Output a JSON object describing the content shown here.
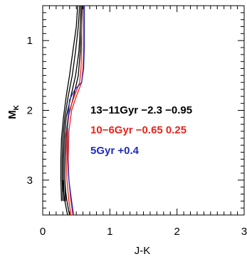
{
  "chart_data": {
    "type": "line",
    "xlabel": "J-K",
    "ylabel": "M",
    "ylabel_sub": "K",
    "xlim": [
      0,
      3
    ],
    "ylim": [
      3.5,
      0.5
    ],
    "y_inverted": true,
    "x_ticks": [
      0,
      1,
      2,
      3
    ],
    "x_tick_labels": [
      "0",
      "1",
      "2",
      "3"
    ],
    "y_ticks": [
      1,
      2,
      3
    ],
    "y_tick_labels": [
      "1",
      "2",
      "3"
    ],
    "legend": [
      {
        "label": "13−11Gyr  −2.3  −0.95",
        "color": "#000000"
      },
      {
        "label": "10−6Gyr  −0.65  0.25",
        "color": "#e8231c"
      },
      {
        "label": "5Gyr  +0.4",
        "color": "#1f2bc0"
      }
    ],
    "series": [
      {
        "color": "#000000",
        "x": [
          0.52,
          0.5,
          0.45,
          0.4,
          0.35,
          0.31,
          0.28,
          0.27,
          0.27,
          0.28
        ],
        "y": [
          0.5,
          0.8,
          1.15,
          1.5,
          1.8,
          2.1,
          2.4,
          2.7,
          3.0,
          3.3
        ]
      },
      {
        "color": "#000000",
        "x": [
          0.55,
          0.53,
          0.49,
          0.44,
          0.38,
          0.33,
          0.3,
          0.29,
          0.29,
          0.3
        ],
        "y": [
          0.5,
          0.8,
          1.15,
          1.5,
          1.8,
          2.1,
          2.4,
          2.7,
          3.0,
          3.3
        ]
      },
      {
        "color": "#000000",
        "x": [
          0.57,
          0.56,
          0.54,
          0.49,
          0.42,
          0.35,
          0.32,
          0.31,
          0.31,
          0.32
        ],
        "y": [
          0.5,
          0.8,
          1.15,
          1.5,
          1.8,
          2.1,
          2.4,
          2.7,
          3.0,
          3.3
        ]
      },
      {
        "color": "#000000",
        "x": [
          0.59,
          0.58,
          0.56,
          0.53,
          0.46,
          0.38,
          0.34,
          0.33,
          0.33,
          0.34
        ],
        "y": [
          0.5,
          0.8,
          1.15,
          1.5,
          1.8,
          2.1,
          2.4,
          2.7,
          3.0,
          3.3
        ]
      },
      {
        "color": "#000000",
        "x": [
          0.3,
          0.31,
          0.33,
          0.35,
          0.37
        ],
        "y": [
          3.0,
          3.15,
          3.3,
          3.4,
          3.5
        ]
      },
      {
        "color": "#000000",
        "x": [
          0.33,
          0.34,
          0.36,
          0.38,
          0.4
        ],
        "y": [
          3.0,
          3.15,
          3.3,
          3.4,
          3.5
        ]
      },
      {
        "color": "#e8231c",
        "x": [
          0.58,
          0.58,
          0.58,
          0.57,
          0.55,
          0.47,
          0.4,
          0.36,
          0.35,
          0.36,
          0.39,
          0.42
        ],
        "y": [
          0.5,
          0.8,
          1.1,
          1.4,
          1.6,
          1.8,
          2.0,
          2.3,
          2.7,
          3.0,
          3.3,
          3.5
        ]
      },
      {
        "color": "#e8231c",
        "x": [
          0.61,
          0.61,
          0.61,
          0.6,
          0.58,
          0.5,
          0.43,
          0.39,
          0.38,
          0.39,
          0.42,
          0.45
        ],
        "y": [
          0.5,
          0.8,
          1.1,
          1.4,
          1.6,
          1.8,
          2.0,
          2.3,
          2.7,
          3.0,
          3.3,
          3.5
        ]
      },
      {
        "color": "#1f2bc0",
        "x": [
          0.62,
          0.62,
          0.62,
          0.61,
          0.58,
          0.48,
          0.4,
          0.37,
          0.37,
          0.39,
          0.43,
          0.46
        ],
        "y": [
          0.5,
          0.8,
          1.1,
          1.4,
          1.6,
          1.7,
          1.85,
          2.2,
          2.7,
          3.0,
          3.3,
          3.5
        ]
      }
    ]
  }
}
